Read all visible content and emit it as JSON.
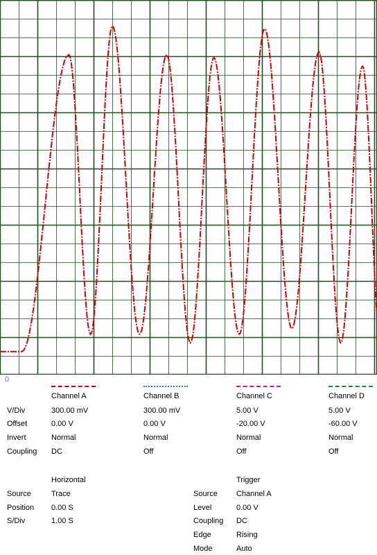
{
  "scope": {
    "origin_label": "0",
    "grid_color": "#1f4f1f",
    "trace_color": "#d40000",
    "trace": {
      "pre_trigger_level": -0.22,
      "rise_at": 0.3,
      "offset": 0.0,
      "amplitude": 0.85,
      "cycles": [
        {
          "t": 0.95,
          "peak": 0.81,
          "trough": -0.16
        },
        {
          "t": 1.55,
          "peak": 0.91,
          "trough": -0.16
        },
        {
          "t": 2.3,
          "peak": 0.81,
          "trough": -0.19
        },
        {
          "t": 2.95,
          "peak": 0.8,
          "trough": -0.16
        },
        {
          "t": 3.65,
          "peak": 0.9,
          "trough": -0.14
        },
        {
          "t": 4.4,
          "peak": 0.82,
          "trough": -0.19
        },
        {
          "t": 5.0,
          "peak": 0.77,
          "trough": -0.19
        }
      ]
    }
  },
  "channels": {
    "row_labels": {
      "vdiv": "V/Div",
      "offset": "Offset",
      "invert": "Invert",
      "coupling": "Coupling"
    },
    "items": [
      {
        "name": "Channel A",
        "vdiv": "300.00 mV",
        "offset": "0.00 V",
        "invert": "Normal",
        "coupling": "DC",
        "color": "#d40000"
      },
      {
        "name": "Channel B",
        "vdiv": "300.00 mV",
        "offset": "0.00 V",
        "invert": "Normal",
        "coupling": "Off",
        "color": "#2a7fcf"
      },
      {
        "name": "Channel C",
        "vdiv": "5.00 V",
        "offset": "-20.00 V",
        "invert": "Normal",
        "coupling": "Off",
        "color": "#c0209f"
      },
      {
        "name": "Channel D",
        "vdiv": "5.00 V",
        "offset": "-60.00 V",
        "invert": "Normal",
        "coupling": "Off",
        "color": "#1a8a3a"
      }
    ]
  },
  "horizontal": {
    "title": "Horizontal",
    "labels": {
      "source": "Source",
      "position": "Position",
      "sdiv": "S/Div"
    },
    "values": {
      "source": "Trace",
      "position": "0.00 S",
      "sdiv": "1.00 S"
    }
  },
  "trigger": {
    "title": "Trigger",
    "labels": {
      "source": "Source",
      "level": "Level",
      "coupling": "Coupling",
      "edge": "Edge",
      "mode": "Mode"
    },
    "values": {
      "source": "Channel A",
      "level": "0.00 V",
      "coupling": "DC",
      "edge": "Rising",
      "mode": "Auto"
    }
  }
}
